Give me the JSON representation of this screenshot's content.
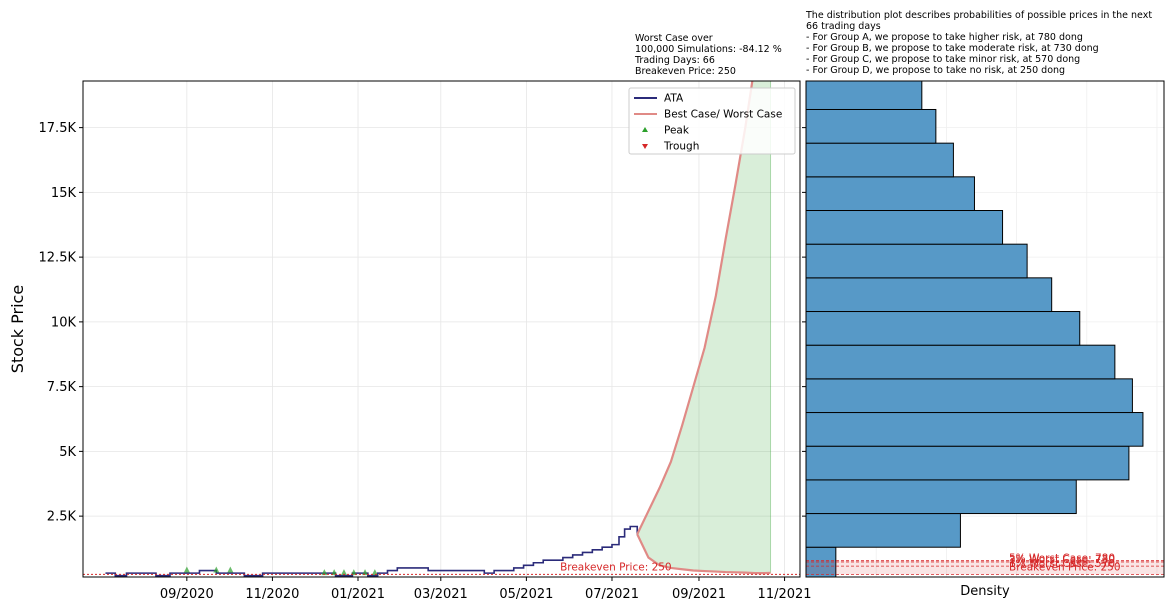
{
  "annotations": {
    "worst_case_box": "Worst Case over\n100,000 Simulations: -84.12 %\nTrading Days: 66\nBreakeven Price: 250",
    "distribution_box": "The distribution plot describes probabilities of possible prices in the next\n66 trading days\n- For Group A, we propose to take higher risk, at 780 dong\n- For Group B, we propose to take moderate risk, at 730 dong\n- For Group C, we propose to take minor risk, at 570 dong\n- For Group D, we propose to take no risk, at 250 dong"
  },
  "chart_data": [
    {
      "type": "line",
      "ylabel": "Stock Price",
      "xlabel": "",
      "x_ticks": [
        "09/2020",
        "11/2020",
        "01/2021",
        "03/2021",
        "05/2021",
        "07/2021",
        "09/2021",
        "11/2021"
      ],
      "y_ticks": [
        "2.5K",
        "5K",
        "7.5K",
        "10K",
        "12.5K",
        "15K",
        "17.5K"
      ],
      "y_tick_values": [
        2500,
        5000,
        7500,
        10000,
        12500,
        15000,
        17500
      ],
      "ylim": [
        150,
        19300
      ],
      "xlim": [
        "2020-06-19",
        "2021-11-12"
      ],
      "grid": true,
      "legend": {
        "placement": "top-right",
        "entries": [
          {
            "label": "ATA",
            "color": "#2b2b7a",
            "kind": "line"
          },
          {
            "label": "Best Case/ Worst Case",
            "color": "#e08a86",
            "kind": "line"
          },
          {
            "label": "Peak",
            "color": "#2ca02c",
            "kind": "triangle-up"
          },
          {
            "label": "Trough",
            "color": "#d62728",
            "kind": "triangle-down"
          }
        ]
      },
      "series": [
        {
          "name": "ATA",
          "color": "#2b2b7a",
          "x": [
            "2020-07-05",
            "2020-07-12",
            "2020-07-20",
            "2020-08-01",
            "2020-08-10",
            "2020-08-20",
            "2020-08-31",
            "2020-09-10",
            "2020-09-22",
            "2020-10-02",
            "2020-10-12",
            "2020-10-25",
            "2020-11-05",
            "2020-11-15",
            "2020-11-25",
            "2020-12-05",
            "2020-12-16",
            "2020-12-28",
            "2021-01-08",
            "2021-01-15",
            "2021-01-22",
            "2021-01-29",
            "2021-02-08",
            "2021-02-20",
            "2021-03-02",
            "2021-03-12",
            "2021-03-22",
            "2021-04-01",
            "2021-04-08",
            "2021-04-15",
            "2021-04-22",
            "2021-04-29",
            "2021-05-06",
            "2021-05-13",
            "2021-05-20",
            "2021-05-27",
            "2021-06-03",
            "2021-06-10",
            "2021-06-17",
            "2021-06-24",
            "2021-07-01",
            "2021-07-06",
            "2021-07-10",
            "2021-07-14",
            "2021-07-19"
          ],
          "y": [
            300,
            200,
            300,
            300,
            200,
            300,
            300,
            400,
            300,
            300,
            200,
            300,
            300,
            300,
            300,
            300,
            200,
            300,
            200,
            300,
            400,
            500,
            500,
            400,
            400,
            400,
            400,
            300,
            400,
            400,
            500,
            600,
            700,
            800,
            800,
            900,
            1000,
            1100,
            1200,
            1300,
            1400,
            1700,
            2000,
            2100,
            1800
          ]
        },
        {
          "name": "Best Case/ Worst Case",
          "color": "#e08a86",
          "best_x": [
            "2021-07-19",
            "2021-07-27",
            "2021-08-04",
            "2021-08-12",
            "2021-08-20",
            "2021-08-28",
            "2021-09-05",
            "2021-09-13",
            "2021-09-20",
            "2021-09-27",
            "2021-10-04",
            "2021-10-11"
          ],
          "best_y": [
            1800,
            2700,
            3600,
            4600,
            6000,
            7500,
            9000,
            11000,
            13200,
            15300,
            17500,
            20000
          ],
          "worst_x": [
            "2021-07-19",
            "2021-07-27",
            "2021-08-04",
            "2021-08-12",
            "2021-08-20",
            "2021-08-28",
            "2021-09-05",
            "2021-09-13",
            "2021-09-20",
            "2021-09-27",
            "2021-10-04",
            "2021-10-11",
            "2021-10-18",
            "2021-10-22"
          ],
          "worst_y": [
            1800,
            900,
            600,
            500,
            450,
            400,
            380,
            360,
            340,
            330,
            320,
            300,
            300,
            310
          ]
        }
      ],
      "peaks": [
        {
          "x": "2020-09-01",
          "y": 400
        },
        {
          "x": "2020-09-22",
          "y": 400
        },
        {
          "x": "2020-10-02",
          "y": 400
        },
        {
          "x": "2020-12-08",
          "y": 300
        },
        {
          "x": "2020-12-15",
          "y": 300
        },
        {
          "x": "2020-12-22",
          "y": 300
        },
        {
          "x": "2020-12-29",
          "y": 300
        },
        {
          "x": "2021-01-06",
          "y": 300
        },
        {
          "x": "2021-01-13",
          "y": 300
        }
      ],
      "troughs": [],
      "breakeven": {
        "value": 250,
        "label": "Breakeven Price: 250",
        "color": "#d62728"
      },
      "fill": {
        "color": "#2ca02c",
        "x_start": "2021-07-19",
        "x_end": "2021-10-22"
      }
    },
    {
      "type": "bar",
      "orientation": "horizontal",
      "xlabel": "Density",
      "color": "#5799c7",
      "bin_edges": [
        0,
        1300,
        2600,
        3900,
        5200,
        6500,
        7800,
        9100,
        10400,
        11700,
        13000,
        14300,
        15600,
        16900,
        18200,
        19500
      ],
      "density": [
        0.085,
        0.44,
        0.77,
        0.92,
        0.96,
        0.93,
        0.88,
        0.78,
        0.7,
        0.63,
        0.56,
        0.48,
        0.42,
        0.37,
        0.33
      ],
      "xlim": [
        0,
        1.02
      ],
      "lines": [
        {
          "value": 780,
          "label": "5% Worst Case: 780"
        },
        {
          "value": 730,
          "label": "3% Worst Case: 730"
        },
        {
          "value": 570,
          "label": "1% Worst Case: 570"
        },
        {
          "value": 250,
          "label": "Breakeven Price: 250"
        }
      ],
      "line_color": "#d62728"
    }
  ]
}
